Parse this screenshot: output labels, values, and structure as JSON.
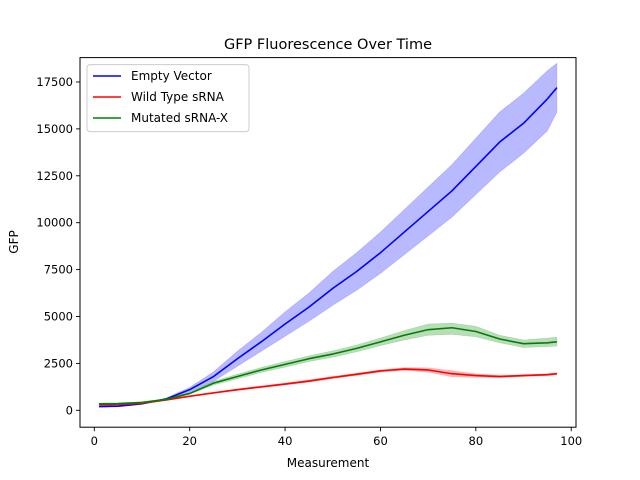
{
  "chart_data": {
    "type": "line",
    "title": "GFP Fluorescence Over Time",
    "xlabel": "Measurement",
    "ylabel": "GFP",
    "xlim": [
      -3,
      101
    ],
    "ylim": [
      -900,
      18800
    ],
    "xticks": [
      0,
      20,
      40,
      60,
      80,
      100
    ],
    "yticks": [
      0,
      2500,
      5000,
      7500,
      10000,
      12500,
      15000,
      17500
    ],
    "grid": false,
    "legend_position": "top-left",
    "x": [
      1,
      5,
      10,
      15,
      20,
      25,
      30,
      35,
      40,
      45,
      50,
      55,
      60,
      65,
      70,
      75,
      80,
      85,
      90,
      95,
      97
    ],
    "series": [
      {
        "name": "Empty Vector",
        "color": "#0000ff",
        "band_color": "#7f7fff",
        "values": [
          200,
          220,
          350,
          600,
          1100,
          1800,
          2750,
          3650,
          4600,
          5500,
          6500,
          7400,
          8400,
          9500,
          10600,
          11700,
          13000,
          14300,
          15300,
          16600,
          17200
        ],
        "lower": [
          170,
          190,
          310,
          550,
          980,
          1550,
          2350,
          3150,
          3950,
          4750,
          5600,
          6400,
          7300,
          8300,
          9300,
          10300,
          11500,
          12700,
          13700,
          14900,
          15900
        ],
        "upper": [
          230,
          250,
          390,
          650,
          1220,
          2050,
          3150,
          4150,
          5250,
          6250,
          7400,
          8400,
          9500,
          10700,
          11900,
          13100,
          14500,
          15900,
          16900,
          18100,
          18500
        ]
      },
      {
        "name": "Wild Type sRNA",
        "color": "#ff0000",
        "band_color": "#ff7f7f",
        "values": [
          300,
          310,
          380,
          550,
          750,
          930,
          1100,
          1250,
          1400,
          1560,
          1750,
          1920,
          2100,
          2200,
          2150,
          1950,
          1850,
          1800,
          1850,
          1900,
          1950
        ],
        "lower": [
          270,
          280,
          350,
          510,
          710,
          890,
          1060,
          1200,
          1350,
          1500,
          1690,
          1860,
          2040,
          2130,
          2040,
          1790,
          1760,
          1740,
          1800,
          1850,
          1900
        ],
        "upper": [
          330,
          340,
          410,
          590,
          790,
          970,
          1140,
          1300,
          1450,
          1620,
          1810,
          1980,
          2160,
          2270,
          2260,
          2110,
          1940,
          1860,
          1900,
          1950,
          2000
        ]
      },
      {
        "name": "Mutated sRNA-X",
        "color": "#008000",
        "band_color": "#7fbf7f",
        "values": [
          350,
          360,
          420,
          580,
          900,
          1450,
          1800,
          2150,
          2450,
          2750,
          3000,
          3300,
          3650,
          4000,
          4300,
          4400,
          4200,
          3800,
          3550,
          3600,
          3650
        ],
        "lower": [
          320,
          330,
          390,
          540,
          850,
          1350,
          1680,
          2020,
          2300,
          2600,
          2830,
          3120,
          3450,
          3750,
          4000,
          4050,
          3920,
          3600,
          3350,
          3400,
          3420
        ],
        "upper": [
          380,
          390,
          450,
          620,
          950,
          1550,
          1920,
          2280,
          2600,
          2900,
          3170,
          3480,
          3850,
          4250,
          4600,
          4650,
          4480,
          4000,
          3750,
          3850,
          3900
        ]
      }
    ]
  }
}
